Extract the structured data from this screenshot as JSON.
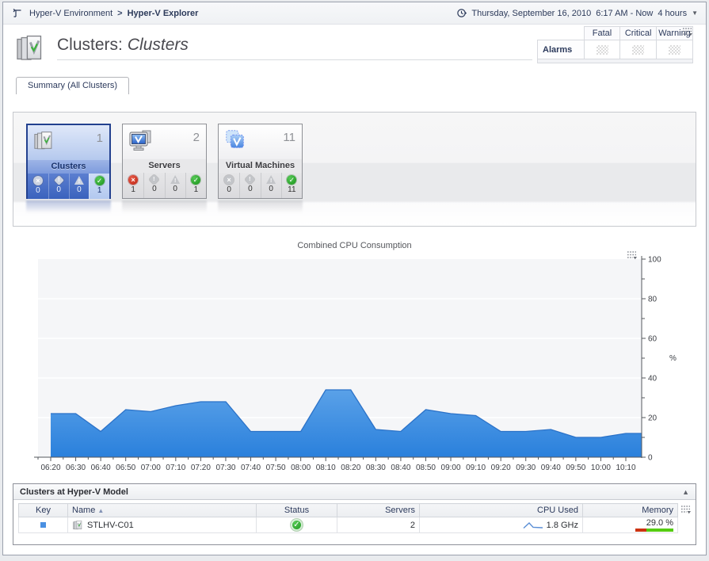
{
  "breadcrumb": {
    "items": [
      {
        "label": "Hyper-V Environment"
      },
      {
        "label": "Hyper-V Explorer"
      }
    ],
    "separator": ">"
  },
  "time_header": {
    "date": "Thursday, September 16, 2010",
    "window": "6:17 AM - Now",
    "duration": "4 hours"
  },
  "page_header": {
    "title_prefix": "Clusters:",
    "title_object": "Clusters"
  },
  "alarms_table": {
    "row_label": "Alarms",
    "columns": [
      "Fatal",
      "Critical",
      "Warning"
    ]
  },
  "tab": {
    "label": "Summary (All Clusters)"
  },
  "tiles": [
    {
      "name": "Clusters",
      "count": 1,
      "selected": true,
      "statuses": {
        "fatal": 0,
        "critical": 0,
        "warning": 0,
        "normal": 1
      }
    },
    {
      "name": "Servers",
      "count": 2,
      "selected": false,
      "statuses": {
        "fatal": 1,
        "critical": 0,
        "warning": 0,
        "normal": 1
      }
    },
    {
      "name": "Virtual Machines",
      "count": 11,
      "selected": false,
      "statuses": {
        "fatal": 0,
        "critical": 0,
        "warning": 0,
        "normal": 11
      }
    }
  ],
  "chart_data": {
    "type": "area",
    "title": "Combined CPU Consumption",
    "xlabel": "",
    "ylabel": "%",
    "ylim": [
      0,
      100
    ],
    "ytick_step": 20,
    "grid": "horizontal",
    "legend": "none",
    "categories": [
      "06:20",
      "06:30",
      "06:40",
      "06:50",
      "07:00",
      "07:10",
      "07:20",
      "07:30",
      "07:40",
      "07:50",
      "08:00",
      "08:10",
      "08:20",
      "08:30",
      "08:40",
      "08:50",
      "09:00",
      "09:10",
      "09:20",
      "09:30",
      "09:40",
      "09:50",
      "10:00",
      "10:10"
    ],
    "values": [
      22,
      22,
      13,
      24,
      23,
      26,
      28,
      28,
      13,
      13,
      13,
      34,
      34,
      14,
      13,
      24,
      22,
      21,
      13,
      13,
      14,
      10,
      10,
      12
    ],
    "fill_color_top": "#5aa1e8",
    "fill_color_bottom": "#2a80dc",
    "line_color": "#2b72c8"
  },
  "clusters_table": {
    "title": "Clusters at Hyper-V Model",
    "columns": [
      "Key",
      "Name",
      "Status",
      "Servers",
      "CPU Used",
      "Memory"
    ],
    "rows": [
      {
        "name": "STLHV-C01",
        "status": "normal",
        "servers": 2,
        "cpu_used": "1.8 GHz",
        "memory_pct": "29.0 %",
        "memory_value": 29.0,
        "key_color": "#4a90e2",
        "spark_color": "#5b8fd6",
        "memory_used_color": "#cc3311",
        "memory_free_color": "#55cc11"
      }
    ]
  },
  "colors": {
    "status_normal": "#1f9e1f",
    "status_fatal": "#c9311f",
    "selected_tile_border": "#23418f"
  }
}
